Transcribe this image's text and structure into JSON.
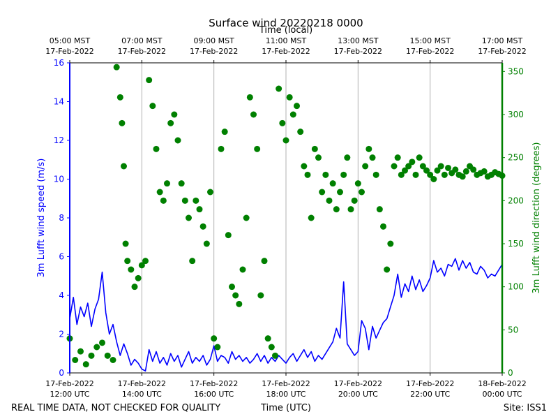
{
  "chart_data": {
    "type": "scatter",
    "title": "Surface wind 20220218 0000",
    "top_axis_label": "Time (local)",
    "xlabel": "Time (UTC)",
    "ylabel_left": "3m Lufft wind speed (m/s)",
    "ylabel_right": "3m Lufft wind direction (degrees)",
    "footer_left": "REAL TIME DATA, NOT CHECKED FOR QUALITY",
    "footer_right": "Site: ISS1",
    "x_range_hours_utc": [
      12,
      24
    ],
    "ylim_left": [
      0,
      16
    ],
    "ylim_right": [
      0,
      360
    ],
    "left_ticks": [
      "0",
      "2",
      "4",
      "6",
      "8",
      "10",
      "12",
      "14",
      "16"
    ],
    "right_ticks": [
      "0",
      "50",
      "100",
      "150",
      "200",
      "250",
      "300",
      "350"
    ],
    "x_ticks_utc": [
      {
        "line1": "17-Feb-2022",
        "line2": "12:00 UTC",
        "hour": 12
      },
      {
        "line1": "17-Feb-2022",
        "line2": "14:00 UTC",
        "hour": 14
      },
      {
        "line1": "17-Feb-2022",
        "line2": "16:00 UTC",
        "hour": 16
      },
      {
        "line1": "17-Feb-2022",
        "line2": "18:00 UTC",
        "hour": 18
      },
      {
        "line1": "17-Feb-2022",
        "line2": "20:00 UTC",
        "hour": 20
      },
      {
        "line1": "17-Feb-2022",
        "line2": "22:00 UTC",
        "hour": 22
      },
      {
        "line1": "18-Feb-2022",
        "line2": "00:00 UTC",
        "hour": 24
      }
    ],
    "x_ticks_local": [
      {
        "line1": "05:00 MST",
        "line2": "17-Feb-2022",
        "hour": 12
      },
      {
        "line1": "07:00 MST",
        "line2": "17-Feb-2022",
        "hour": 14
      },
      {
        "line1": "09:00 MST",
        "line2": "17-Feb-2022",
        "hour": 16
      },
      {
        "line1": "11:00 MST",
        "line2": "17-Feb-2022",
        "hour": 18
      },
      {
        "line1": "13:00 MST",
        "line2": "17-Feb-2022",
        "hour": 20
      },
      {
        "line1": "15:00 MST",
        "line2": "17-Feb-2022",
        "hour": 22
      },
      {
        "line1": "17:00 MST",
        "line2": "17-Feb-2022",
        "hour": 24
      }
    ],
    "colors": {
      "speed": "#0000ff",
      "direction": "#008000",
      "grid": "#b0b0b0",
      "frame": "#000000"
    },
    "series": [
      {
        "name": "wind speed (m/s)",
        "style": "line",
        "axis": "left",
        "x_hours_utc": [
          12.0,
          12.1,
          12.2,
          12.3,
          12.4,
          12.5,
          12.6,
          12.7,
          12.8,
          12.9,
          13.0,
          13.1,
          13.2,
          13.3,
          13.4,
          13.5,
          13.6,
          13.7,
          13.8,
          13.9,
          14.0,
          14.1,
          14.2,
          14.3,
          14.4,
          14.5,
          14.6,
          14.7,
          14.8,
          14.9,
          15.0,
          15.1,
          15.2,
          15.3,
          15.4,
          15.5,
          15.6,
          15.7,
          15.8,
          15.9,
          16.0,
          16.1,
          16.2,
          16.3,
          16.4,
          16.5,
          16.6,
          16.7,
          16.8,
          16.9,
          17.0,
          17.1,
          17.2,
          17.3,
          17.4,
          17.5,
          17.6,
          17.7,
          17.8,
          17.9,
          18.0,
          18.1,
          18.2,
          18.3,
          18.4,
          18.5,
          18.6,
          18.7,
          18.8,
          18.9,
          19.0,
          19.1,
          19.2,
          19.3,
          19.4,
          19.5,
          19.6,
          19.7,
          19.8,
          19.9,
          20.0,
          20.1,
          20.2,
          20.3,
          20.4,
          20.5,
          20.6,
          20.7,
          20.8,
          20.9,
          21.0,
          21.1,
          21.2,
          21.3,
          21.4,
          21.5,
          21.6,
          21.7,
          21.8,
          21.9,
          22.0,
          22.1,
          22.2,
          22.3,
          22.4,
          22.5,
          22.6,
          22.7,
          22.8,
          22.9,
          23.0,
          23.1,
          23.2,
          23.3,
          23.4,
          23.5,
          23.6,
          23.7,
          23.8,
          23.9,
          24.0
        ],
        "values": [
          2.8,
          3.9,
          2.5,
          3.4,
          2.9,
          3.6,
          2.4,
          3.3,
          3.8,
          5.2,
          3.1,
          2.0,
          2.5,
          1.6,
          0.9,
          1.5,
          1.0,
          0.4,
          0.7,
          0.5,
          0.2,
          0.1,
          1.2,
          0.6,
          1.1,
          0.5,
          0.8,
          0.4,
          1.0,
          0.6,
          0.9,
          0.3,
          0.7,
          1.1,
          0.5,
          0.8,
          0.6,
          0.9,
          0.4,
          0.7,
          1.4,
          0.6,
          0.9,
          0.8,
          0.5,
          1.1,
          0.7,
          0.9,
          0.6,
          0.8,
          0.5,
          0.7,
          1.0,
          0.6,
          0.9,
          0.5,
          0.8,
          0.6,
          0.9,
          0.7,
          0.5,
          0.8,
          1.0,
          0.6,
          0.9,
          1.2,
          0.8,
          1.1,
          0.6,
          0.9,
          0.7,
          1.0,
          1.3,
          1.6,
          2.3,
          1.8,
          4.7,
          1.5,
          1.2,
          0.9,
          1.1,
          2.7,
          2.3,
          1.2,
          2.4,
          1.8,
          2.2,
          2.6,
          2.8,
          3.4,
          4.0,
          5.1,
          3.9,
          4.6,
          4.2,
          5.0,
          4.3,
          4.8,
          4.2,
          4.5,
          4.9,
          5.8,
          5.2,
          5.4,
          5.0,
          5.6,
          5.5,
          5.9,
          5.3,
          5.8,
          5.4,
          5.7,
          5.2,
          5.1,
          5.5,
          5.3,
          4.9,
          5.1,
          5.0,
          5.3,
          5.6
        ]
      },
      {
        "name": "wind direction (degrees)",
        "style": "points",
        "axis": "right",
        "x_hours_utc": [
          12.0,
          12.15,
          12.3,
          12.45,
          12.6,
          12.75,
          12.9,
          13.05,
          13.2,
          13.3,
          13.4,
          13.45,
          13.5,
          13.55,
          13.6,
          13.7,
          13.8,
          13.9,
          14.0,
          14.1,
          14.2,
          14.3,
          14.4,
          14.5,
          14.6,
          14.7,
          14.8,
          14.9,
          15.0,
          15.1,
          15.2,
          15.3,
          15.4,
          15.5,
          15.6,
          15.7,
          15.8,
          15.9,
          16.0,
          16.1,
          16.2,
          16.3,
          16.4,
          16.5,
          16.6,
          16.7,
          16.8,
          16.9,
          17.0,
          17.1,
          17.2,
          17.3,
          17.4,
          17.5,
          17.6,
          17.7,
          17.8,
          17.9,
          18.0,
          18.1,
          18.2,
          18.3,
          18.4,
          18.5,
          18.6,
          18.7,
          18.8,
          18.9,
          19.0,
          19.1,
          19.2,
          19.3,
          19.4,
          19.5,
          19.6,
          19.7,
          19.8,
          19.9,
          20.0,
          20.1,
          20.2,
          20.3,
          20.4,
          20.5,
          20.6,
          20.7,
          20.8,
          20.9,
          21.0,
          21.1,
          21.2,
          21.3,
          21.4,
          21.5,
          21.6,
          21.7,
          21.8,
          21.9,
          22.0,
          22.1,
          22.2,
          22.3,
          22.4,
          22.5,
          22.6,
          22.7,
          22.8,
          22.9,
          23.0,
          23.1,
          23.2,
          23.3,
          23.4,
          23.5,
          23.6,
          23.7,
          23.8,
          23.9,
          24.0
        ],
        "values": [
          40,
          15,
          25,
          10,
          20,
          30,
          35,
          20,
          15,
          355,
          320,
          290,
          240,
          150,
          130,
          120,
          100,
          110,
          125,
          130,
          340,
          310,
          260,
          210,
          200,
          220,
          290,
          300,
          270,
          220,
          200,
          180,
          130,
          200,
          190,
          170,
          150,
          210,
          40,
          30,
          260,
          280,
          160,
          100,
          90,
          80,
          120,
          180,
          320,
          300,
          260,
          90,
          130,
          40,
          30,
          20,
          330,
          290,
          270,
          320,
          300,
          310,
          280,
          240,
          230,
          180,
          260,
          250,
          210,
          230,
          200,
          220,
          190,
          210,
          230,
          250,
          190,
          200,
          220,
          210,
          240,
          260,
          250,
          230,
          190,
          170,
          120,
          150,
          240,
          250,
          230,
          235,
          240,
          245,
          230,
          250,
          240,
          235,
          230,
          225,
          235,
          240,
          230,
          238,
          232,
          236,
          230,
          228,
          234,
          240,
          236,
          230,
          232,
          234,
          228,
          230,
          233,
          231,
          229
        ]
      }
    ]
  }
}
